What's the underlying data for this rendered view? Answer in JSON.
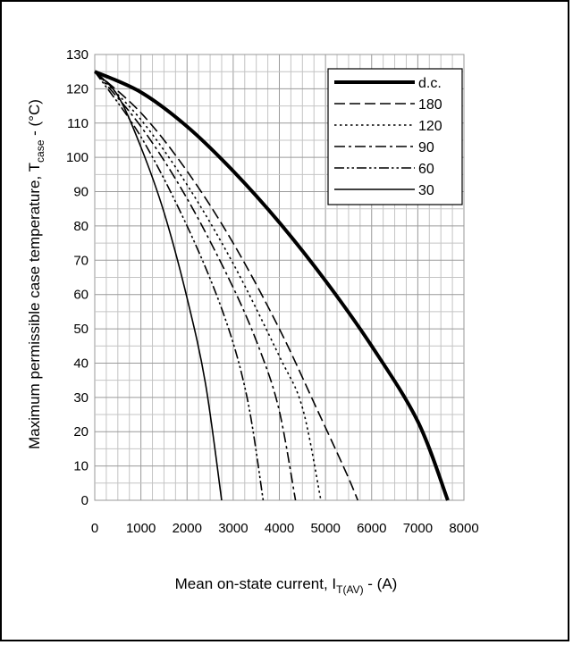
{
  "chart_data": {
    "type": "line",
    "xlabel": "Mean on-state current, I",
    "xlabel_sub": "T(AV)",
    "xlabel_suffix": " - (A)",
    "ylabel": "Maximum permissible case temperature, T",
    "ylabel_sub": "case",
    "ylabel_suffix": " - (°C)",
    "xlim": [
      0,
      8000
    ],
    "ylim": [
      0,
      130
    ],
    "x_ticks": [
      0,
      1000,
      2000,
      3000,
      4000,
      5000,
      6000,
      7000,
      8000
    ],
    "y_ticks": [
      0,
      10,
      20,
      30,
      40,
      50,
      60,
      70,
      80,
      90,
      100,
      110,
      120,
      130
    ],
    "grid": true,
    "legend_position": "top-right",
    "series": [
      {
        "name": "d.c.",
        "style": "solid-thick",
        "points": [
          [
            0,
            125
          ],
          [
            1000,
            119
          ],
          [
            2000,
            109
          ],
          [
            3000,
            96
          ],
          [
            4000,
            81
          ],
          [
            5000,
            64
          ],
          [
            6000,
            45
          ],
          [
            7000,
            23
          ],
          [
            7650,
            0
          ]
        ]
      },
      {
        "name": "180",
        "style": "dash-long",
        "points": [
          [
            0,
            125
          ],
          [
            1000,
            113
          ],
          [
            2000,
            96
          ],
          [
            3000,
            75
          ],
          [
            4000,
            50
          ],
          [
            4800,
            27
          ],
          [
            5450,
            8
          ],
          [
            5700,
            0
          ]
        ]
      },
      {
        "name": "120",
        "style": "dotted",
        "points": [
          [
            0,
            125
          ],
          [
            1000,
            111
          ],
          [
            2000,
            92
          ],
          [
            3000,
            69
          ],
          [
            4000,
            42
          ],
          [
            4500,
            27
          ],
          [
            4900,
            0
          ]
        ]
      },
      {
        "name": "90",
        "style": "dash-dot",
        "points": [
          [
            0,
            125
          ],
          [
            1000,
            109
          ],
          [
            2000,
            88
          ],
          [
            3000,
            62
          ],
          [
            3600,
            43
          ],
          [
            4000,
            26
          ],
          [
            4350,
            0
          ]
        ]
      },
      {
        "name": "60",
        "style": "dash-dot-dot",
        "points": [
          [
            0,
            125
          ],
          [
            1000,
            106
          ],
          [
            2000,
            80
          ],
          [
            2800,
            54
          ],
          [
            3300,
            30
          ],
          [
            3650,
            0
          ]
        ]
      },
      {
        "name": "30",
        "style": "solid-thin",
        "points": [
          [
            0,
            125
          ],
          [
            500,
            118
          ],
          [
            1000,
            103
          ],
          [
            1500,
            84
          ],
          [
            2000,
            59
          ],
          [
            2400,
            34
          ],
          [
            2750,
            0
          ]
        ]
      }
    ]
  }
}
